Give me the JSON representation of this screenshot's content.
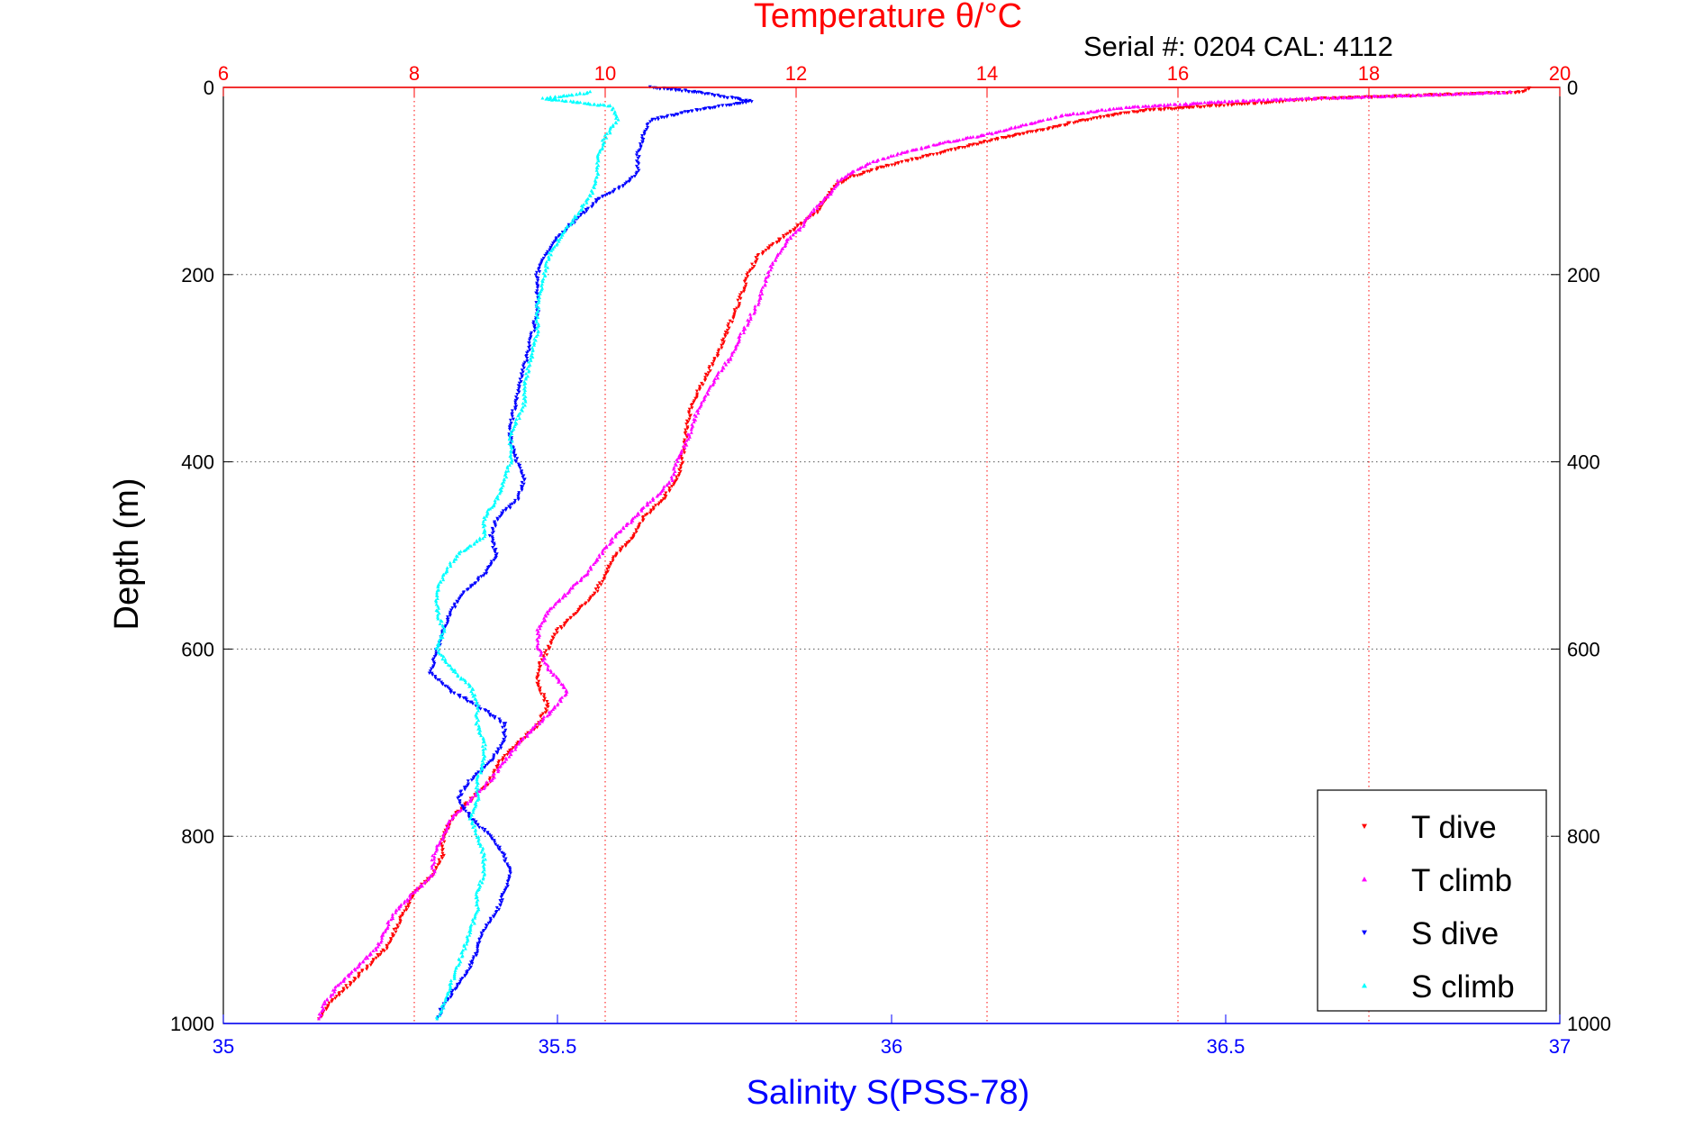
{
  "figure": {
    "top_title": "Temperature θ/°C",
    "top_title_color": "#ff0000",
    "serial_text": "Serial #: 0204  CAL: 4112"
  },
  "chart_data": {
    "type": "scatter",
    "grid": true,
    "y_axis": {
      "label": "Depth (m)",
      "range": [
        0,
        1000
      ],
      "reversed": true,
      "ticks": [
        0,
        200,
        400,
        600,
        800,
        1000
      ],
      "tick_labels": [
        "0",
        "200",
        "400",
        "600",
        "800",
        "1000"
      ],
      "mirrored_on_right": true
    },
    "x_top": {
      "quantity": "temperature",
      "label": "Temperature θ/°C",
      "color": "#ff0000",
      "range": [
        6,
        20
      ],
      "ticks": [
        6,
        8,
        10,
        12,
        14,
        16,
        18,
        20
      ],
      "tick_labels": [
        "6",
        "8",
        "10",
        "12",
        "14",
        "16",
        "18",
        "20"
      ]
    },
    "x_bottom": {
      "quantity": "salinity",
      "label": "Salinity S(PSS-78)",
      "color": "#0000ff",
      "range": [
        35,
        37
      ],
      "ticks": [
        35,
        35.5,
        36,
        36.5,
        37
      ],
      "tick_labels": [
        "35",
        "35.5",
        "36",
        "36.5",
        "37"
      ]
    },
    "legend": {
      "position": "bottom-right"
    },
    "series": [
      {
        "name": "T dive",
        "axis": "x_top",
        "color": "#ff0000",
        "marker": "triangle-down",
        "points": [
          [
            19.7,
            0
          ],
          [
            19.6,
            5
          ],
          [
            17.5,
            12
          ],
          [
            15.6,
            25
          ],
          [
            15.0,
            35
          ],
          [
            14.6,
            45
          ],
          [
            14.1,
            55
          ],
          [
            13.7,
            65
          ],
          [
            13.3,
            75
          ],
          [
            12.9,
            85
          ],
          [
            12.6,
            95
          ],
          [
            12.4,
            105
          ],
          [
            12.3,
            120
          ],
          [
            12.2,
            135
          ],
          [
            12.0,
            150
          ],
          [
            11.8,
            165
          ],
          [
            11.6,
            180
          ],
          [
            11.5,
            200
          ],
          [
            11.4,
            230
          ],
          [
            11.3,
            255
          ],
          [
            11.2,
            280
          ],
          [
            11.05,
            310
          ],
          [
            10.9,
            340
          ],
          [
            10.85,
            370
          ],
          [
            10.8,
            400
          ],
          [
            10.75,
            420
          ],
          [
            10.6,
            440
          ],
          [
            10.4,
            460
          ],
          [
            10.3,
            480
          ],
          [
            10.1,
            500
          ],
          [
            10.0,
            520
          ],
          [
            9.9,
            540
          ],
          [
            9.7,
            560
          ],
          [
            9.5,
            580
          ],
          [
            9.4,
            600
          ],
          [
            9.3,
            620
          ],
          [
            9.3,
            640
          ],
          [
            9.4,
            660
          ],
          [
            9.3,
            680
          ],
          [
            9.1,
            700
          ],
          [
            8.9,
            720
          ],
          [
            8.8,
            740
          ],
          [
            8.6,
            760
          ],
          [
            8.4,
            780
          ],
          [
            8.3,
            800
          ],
          [
            8.3,
            820
          ],
          [
            8.2,
            840
          ],
          [
            8.0,
            860
          ],
          [
            7.9,
            880
          ],
          [
            7.8,
            900
          ],
          [
            7.7,
            920
          ],
          [
            7.5,
            940
          ],
          [
            7.3,
            960
          ],
          [
            7.1,
            980
          ],
          [
            7.0,
            995
          ]
        ]
      },
      {
        "name": "T climb",
        "axis": "x_top",
        "color": "#ff00ff",
        "marker": "triangle-up",
        "points": [
          [
            19.5,
            5
          ],
          [
            18.0,
            10
          ],
          [
            16.5,
            15
          ],
          [
            15.4,
            22
          ],
          [
            14.8,
            30
          ],
          [
            14.4,
            40
          ],
          [
            14.0,
            50
          ],
          [
            13.5,
            60
          ],
          [
            13.1,
            70
          ],
          [
            12.8,
            80
          ],
          [
            12.6,
            90
          ],
          [
            12.45,
            100
          ],
          [
            12.35,
            115
          ],
          [
            12.2,
            130
          ],
          [
            12.05,
            150
          ],
          [
            11.9,
            165
          ],
          [
            11.8,
            180
          ],
          [
            11.7,
            200
          ],
          [
            11.6,
            230
          ],
          [
            11.45,
            260
          ],
          [
            11.3,
            290
          ],
          [
            11.1,
            320
          ],
          [
            10.95,
            350
          ],
          [
            10.85,
            380
          ],
          [
            10.75,
            400
          ],
          [
            10.7,
            420
          ],
          [
            10.5,
            440
          ],
          [
            10.3,
            460
          ],
          [
            10.1,
            480
          ],
          [
            9.95,
            500
          ],
          [
            9.8,
            520
          ],
          [
            9.6,
            540
          ],
          [
            9.4,
            560
          ],
          [
            9.3,
            580
          ],
          [
            9.3,
            600
          ],
          [
            9.4,
            620
          ],
          [
            9.6,
            645
          ],
          [
            9.5,
            660
          ],
          [
            9.3,
            680
          ],
          [
            9.1,
            700
          ],
          [
            8.95,
            720
          ],
          [
            8.8,
            740
          ],
          [
            8.6,
            760
          ],
          [
            8.4,
            780
          ],
          [
            8.3,
            800
          ],
          [
            8.2,
            820
          ],
          [
            8.2,
            840
          ],
          [
            8.0,
            860
          ],
          [
            7.8,
            880
          ],
          [
            7.7,
            900
          ],
          [
            7.6,
            920
          ],
          [
            7.4,
            940
          ],
          [
            7.2,
            960
          ],
          [
            7.05,
            980
          ],
          [
            7.0,
            995
          ]
        ]
      },
      {
        "name": "S dive",
        "axis": "x_bottom",
        "color": "#0000ff",
        "marker": "triangle-down",
        "points": [
          [
            35.64,
            0
          ],
          [
            35.71,
            5
          ],
          [
            35.79,
            15
          ],
          [
            35.7,
            25
          ],
          [
            35.64,
            35
          ],
          [
            35.63,
            50
          ],
          [
            35.62,
            70
          ],
          [
            35.62,
            90
          ],
          [
            35.6,
            105
          ],
          [
            35.56,
            120
          ],
          [
            35.53,
            140
          ],
          [
            35.5,
            160
          ],
          [
            35.48,
            180
          ],
          [
            35.47,
            200
          ],
          [
            35.47,
            240
          ],
          [
            35.46,
            270
          ],
          [
            35.45,
            300
          ],
          [
            35.44,
            330
          ],
          [
            35.43,
            360
          ],
          [
            35.43,
            380
          ],
          [
            35.44,
            400
          ],
          [
            35.45,
            420
          ],
          [
            35.44,
            440
          ],
          [
            35.41,
            460
          ],
          [
            35.4,
            480
          ],
          [
            35.41,
            500
          ],
          [
            35.39,
            520
          ],
          [
            35.36,
            540
          ],
          [
            35.34,
            560
          ],
          [
            35.33,
            580
          ],
          [
            35.32,
            600
          ],
          [
            35.31,
            625
          ],
          [
            35.34,
            645
          ],
          [
            35.38,
            660
          ],
          [
            35.42,
            680
          ],
          [
            35.42,
            700
          ],
          [
            35.4,
            720
          ],
          [
            35.37,
            740
          ],
          [
            35.35,
            760
          ],
          [
            35.37,
            780
          ],
          [
            35.4,
            800
          ],
          [
            35.42,
            820
          ],
          [
            35.43,
            840
          ],
          [
            35.42,
            860
          ],
          [
            35.41,
            880
          ],
          [
            35.39,
            900
          ],
          [
            35.38,
            920
          ],
          [
            35.37,
            940
          ],
          [
            35.35,
            960
          ],
          [
            35.33,
            980
          ],
          [
            35.32,
            995
          ]
        ]
      },
      {
        "name": "S climb",
        "axis": "x_bottom",
        "color": "#00ffff",
        "marker": "triangle-up",
        "points": [
          [
            35.55,
            5
          ],
          [
            35.48,
            12
          ],
          [
            35.58,
            20
          ],
          [
            35.59,
            35
          ],
          [
            35.57,
            55
          ],
          [
            35.56,
            75
          ],
          [
            35.56,
            95
          ],
          [
            35.55,
            115
          ],
          [
            35.53,
            135
          ],
          [
            35.51,
            155
          ],
          [
            35.49,
            175
          ],
          [
            35.48,
            200
          ],
          [
            35.47,
            230
          ],
          [
            35.47,
            260
          ],
          [
            35.46,
            290
          ],
          [
            35.45,
            320
          ],
          [
            35.45,
            340
          ],
          [
            35.43,
            370
          ],
          [
            35.43,
            400
          ],
          [
            35.42,
            420
          ],
          [
            35.41,
            440
          ],
          [
            35.39,
            460
          ],
          [
            35.39,
            480
          ],
          [
            35.35,
            500
          ],
          [
            35.33,
            520
          ],
          [
            35.32,
            540
          ],
          [
            35.32,
            560
          ],
          [
            35.33,
            580
          ],
          [
            35.32,
            600
          ],
          [
            35.34,
            620
          ],
          [
            35.37,
            640
          ],
          [
            35.38,
            660
          ],
          [
            35.38,
            680
          ],
          [
            35.39,
            700
          ],
          [
            35.39,
            720
          ],
          [
            35.38,
            740
          ],
          [
            35.38,
            760
          ],
          [
            35.37,
            780
          ],
          [
            35.38,
            800
          ],
          [
            35.39,
            820
          ],
          [
            35.39,
            840
          ],
          [
            35.38,
            860
          ],
          [
            35.38,
            880
          ],
          [
            35.37,
            900
          ],
          [
            35.36,
            920
          ],
          [
            35.35,
            940
          ],
          [
            35.34,
            960
          ],
          [
            35.33,
            980
          ],
          [
            35.32,
            995
          ]
        ]
      }
    ]
  }
}
